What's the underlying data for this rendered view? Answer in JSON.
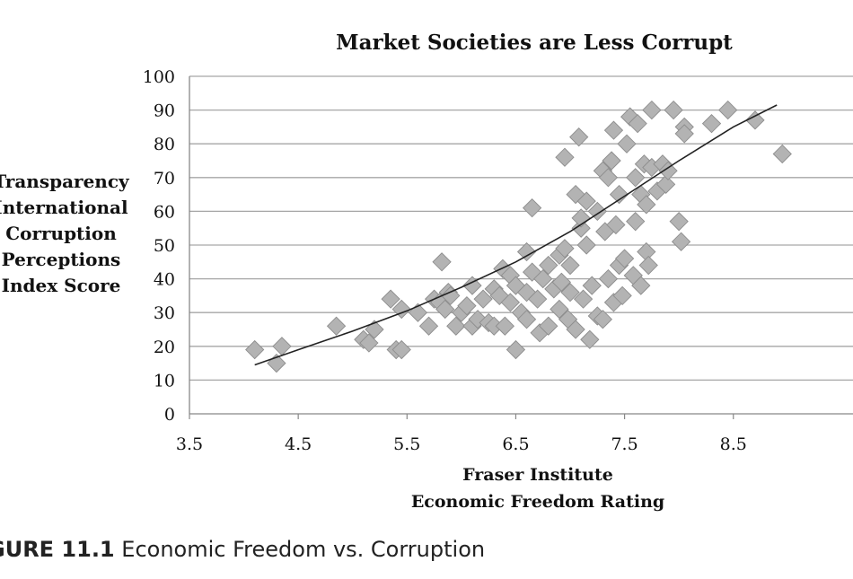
{
  "chart_data": {
    "type": "scatter",
    "title": "Market Societies are Less Corrupt",
    "xlabel_lines": [
      "Fraser Institute",
      "Economic Freedom Rating"
    ],
    "ylabel_lines": [
      "Transparency",
      "International",
      "Corruption",
      "Perceptions",
      "Index Score"
    ],
    "xlim": [
      3.5,
      9.6
    ],
    "ylim": [
      0,
      100
    ],
    "xticks": [
      3.5,
      4.5,
      5.5,
      6.5,
      7.5,
      8.5
    ],
    "yticks": [
      0,
      10,
      20,
      30,
      40,
      50,
      60,
      70,
      80,
      90,
      100
    ],
    "grid": "horizontal",
    "marker": "diamond",
    "marker_color": "#b3b3b3",
    "trendline": {
      "type": "exponential",
      "x": [
        4.1,
        4.5,
        5.0,
        5.5,
        6.0,
        6.5,
        7.0,
        7.5,
        8.0,
        8.5,
        8.9
      ],
      "y": [
        14.5,
        19,
        24.5,
        30.5,
        37.5,
        45,
        54,
        64.5,
        75,
        85,
        91.5
      ]
    },
    "points": [
      {
        "x": 4.1,
        "y": 19
      },
      {
        "x": 4.3,
        "y": 15
      },
      {
        "x": 4.35,
        "y": 20
      },
      {
        "x": 4.85,
        "y": 26
      },
      {
        "x": 5.1,
        "y": 22
      },
      {
        "x": 5.15,
        "y": 21
      },
      {
        "x": 5.2,
        "y": 25
      },
      {
        "x": 5.35,
        "y": 34
      },
      {
        "x": 5.4,
        "y": 19
      },
      {
        "x": 5.45,
        "y": 19
      },
      {
        "x": 5.45,
        "y": 31
      },
      {
        "x": 5.6,
        "y": 30
      },
      {
        "x": 5.7,
        "y": 26
      },
      {
        "x": 5.75,
        "y": 34
      },
      {
        "x": 5.8,
        "y": 33
      },
      {
        "x": 5.82,
        "y": 45
      },
      {
        "x": 5.85,
        "y": 31
      },
      {
        "x": 5.88,
        "y": 36
      },
      {
        "x": 5.9,
        "y": 35
      },
      {
        "x": 5.95,
        "y": 26
      },
      {
        "x": 6.0,
        "y": 30
      },
      {
        "x": 6.05,
        "y": 32
      },
      {
        "x": 6.1,
        "y": 38
      },
      {
        "x": 6.1,
        "y": 26
      },
      {
        "x": 6.15,
        "y": 28
      },
      {
        "x": 6.2,
        "y": 34
      },
      {
        "x": 6.25,
        "y": 27
      },
      {
        "x": 6.3,
        "y": 37
      },
      {
        "x": 6.3,
        "y": 26
      },
      {
        "x": 6.35,
        "y": 35
      },
      {
        "x": 6.38,
        "y": 43
      },
      {
        "x": 6.4,
        "y": 26
      },
      {
        "x": 6.45,
        "y": 33
      },
      {
        "x": 6.45,
        "y": 41
      },
      {
        "x": 6.5,
        "y": 19
      },
      {
        "x": 6.5,
        "y": 38
      },
      {
        "x": 6.55,
        "y": 30
      },
      {
        "x": 6.6,
        "y": 48
      },
      {
        "x": 6.6,
        "y": 28
      },
      {
        "x": 6.6,
        "y": 36
      },
      {
        "x": 6.65,
        "y": 42
      },
      {
        "x": 6.65,
        "y": 61
      },
      {
        "x": 6.7,
        "y": 34
      },
      {
        "x": 6.72,
        "y": 24
      },
      {
        "x": 6.75,
        "y": 40
      },
      {
        "x": 6.8,
        "y": 44
      },
      {
        "x": 6.8,
        "y": 26
      },
      {
        "x": 6.85,
        "y": 37
      },
      {
        "x": 6.9,
        "y": 31
      },
      {
        "x": 6.9,
        "y": 47
      },
      {
        "x": 6.92,
        "y": 39
      },
      {
        "x": 6.95,
        "y": 49
      },
      {
        "x": 6.95,
        "y": 76
      },
      {
        "x": 6.98,
        "y": 28
      },
      {
        "x": 7.0,
        "y": 36
      },
      {
        "x": 7.0,
        "y": 44
      },
      {
        "x": 7.05,
        "y": 65
      },
      {
        "x": 7.05,
        "y": 25
      },
      {
        "x": 7.08,
        "y": 82
      },
      {
        "x": 7.1,
        "y": 55
      },
      {
        "x": 7.1,
        "y": 58
      },
      {
        "x": 7.12,
        "y": 34
      },
      {
        "x": 7.15,
        "y": 63
      },
      {
        "x": 7.15,
        "y": 50
      },
      {
        "x": 7.18,
        "y": 22
      },
      {
        "x": 7.2,
        "y": 38
      },
      {
        "x": 7.25,
        "y": 29
      },
      {
        "x": 7.25,
        "y": 60
      },
      {
        "x": 7.3,
        "y": 28
      },
      {
        "x": 7.3,
        "y": 72
      },
      {
        "x": 7.32,
        "y": 54
      },
      {
        "x": 7.35,
        "y": 40
      },
      {
        "x": 7.35,
        "y": 70
      },
      {
        "x": 7.38,
        "y": 75
      },
      {
        "x": 7.4,
        "y": 33
      },
      {
        "x": 7.4,
        "y": 84
      },
      {
        "x": 7.42,
        "y": 56
      },
      {
        "x": 7.45,
        "y": 65
      },
      {
        "x": 7.45,
        "y": 44
      },
      {
        "x": 7.48,
        "y": 35
      },
      {
        "x": 7.5,
        "y": 46
      },
      {
        "x": 7.52,
        "y": 80
      },
      {
        "x": 7.55,
        "y": 88
      },
      {
        "x": 7.58,
        "y": 41
      },
      {
        "x": 7.6,
        "y": 57
      },
      {
        "x": 7.6,
        "y": 70
      },
      {
        "x": 7.62,
        "y": 86
      },
      {
        "x": 7.65,
        "y": 38
      },
      {
        "x": 7.65,
        "y": 65
      },
      {
        "x": 7.68,
        "y": 74
      },
      {
        "x": 7.7,
        "y": 48
      },
      {
        "x": 7.7,
        "y": 62
      },
      {
        "x": 7.72,
        "y": 44
      },
      {
        "x": 7.75,
        "y": 73
      },
      {
        "x": 7.75,
        "y": 90
      },
      {
        "x": 7.8,
        "y": 66
      },
      {
        "x": 7.85,
        "y": 74
      },
      {
        "x": 7.88,
        "y": 68
      },
      {
        "x": 7.9,
        "y": 72
      },
      {
        "x": 7.95,
        "y": 90
      },
      {
        "x": 8.0,
        "y": 57
      },
      {
        "x": 8.02,
        "y": 51
      },
      {
        "x": 8.05,
        "y": 85
      },
      {
        "x": 8.05,
        "y": 83
      },
      {
        "x": 8.3,
        "y": 86
      },
      {
        "x": 8.45,
        "y": 90
      },
      {
        "x": 8.7,
        "y": 87
      },
      {
        "x": 8.95,
        "y": 77
      }
    ]
  },
  "caption": {
    "label": "GURE 11.1",
    "text": "Economic Freedom vs. Corruption"
  }
}
